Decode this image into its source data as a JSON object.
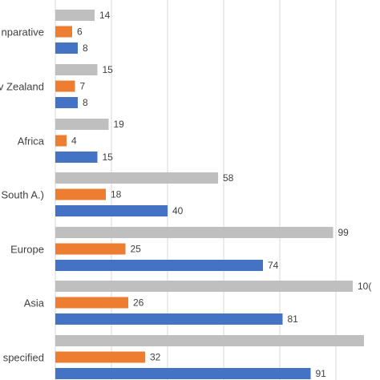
{
  "chart_data": {
    "type": "bar",
    "orientation": "horizontal",
    "categories": [
      "nparative",
      "v Zealand",
      "Africa",
      "South A.)",
      "Europe",
      "Asia",
      "specified"
    ],
    "series": [
      {
        "values": [
          14,
          15,
          19,
          58,
          99,
          106,
          110
        ],
        "labels": [
          "14",
          "15",
          "19",
          "58",
          "99",
          "10(",
          ""
        ],
        "color": "#bfbfbf"
      },
      {
        "values": [
          6,
          7,
          4,
          18,
          25,
          26,
          32
        ],
        "labels": [
          "6",
          "7",
          "4",
          "18",
          "25",
          "26",
          "32"
        ],
        "color": "#ed7d31"
      },
      {
        "values": [
          8,
          8,
          15,
          40,
          74,
          81,
          91
        ],
        "labels": [
          "8",
          "8",
          "15",
          "40",
          "74",
          "81",
          "91"
        ],
        "color": "#4472c4"
      }
    ],
    "xlim": [
      0,
      110
    ],
    "grid": true,
    "gridline_color": "#d9d9d9",
    "legend": "none"
  }
}
